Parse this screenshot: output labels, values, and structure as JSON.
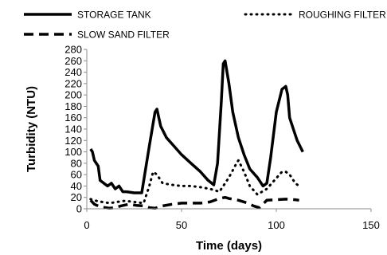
{
  "chart_data": {
    "type": "line",
    "xlabel": "Time (days)",
    "ylabel": "Turbidity (NTU)",
    "xlim": [
      0,
      150
    ],
    "ylim": [
      0,
      280
    ],
    "x_ticks": [
      0,
      50,
      100,
      150
    ],
    "y_ticks": [
      0,
      20,
      40,
      60,
      80,
      100,
      120,
      140,
      160,
      180,
      200,
      220,
      240,
      260,
      280
    ],
    "grid": false,
    "legend_position": "top",
    "series": [
      {
        "name": "STORAGE TANK",
        "style": "solid",
        "x": [
          2,
          3,
          4,
          5,
          6,
          7,
          9,
          11,
          13,
          15,
          17,
          19,
          21,
          25,
          29,
          33,
          36,
          37,
          39,
          42,
          46,
          50,
          55,
          60,
          64,
          67,
          69,
          71,
          72,
          73,
          75,
          77,
          80,
          83,
          86,
          90,
          93,
          95,
          97,
          100,
          103,
          105,
          106,
          107,
          109,
          111,
          114
        ],
        "y": [
          105,
          100,
          85,
          80,
          75,
          50,
          45,
          40,
          45,
          35,
          40,
          30,
          30,
          28,
          28,
          110,
          170,
          175,
          145,
          125,
          110,
          95,
          80,
          65,
          50,
          42,
          80,
          190,
          255,
          260,
          220,
          170,
          125,
          95,
          70,
          55,
          40,
          45,
          90,
          170,
          210,
          215,
          200,
          160,
          140,
          120,
          100
        ]
      },
      {
        "name": "ROUGHING FILTER",
        "style": "dotted",
        "x": [
          2,
          5,
          8,
          12,
          16,
          20,
          25,
          30,
          33,
          35,
          37,
          40,
          45,
          50,
          55,
          60,
          65,
          70,
          75,
          79,
          80,
          83,
          86,
          90,
          95,
          99,
          103,
          105,
          107,
          110,
          112
        ],
        "y": [
          17,
          14,
          12,
          10,
          12,
          14,
          12,
          10,
          40,
          65,
          60,
          45,
          42,
          40,
          40,
          38,
          35,
          30,
          55,
          80,
          85,
          65,
          40,
          25,
          35,
          50,
          65,
          65,
          60,
          45,
          40
        ]
      },
      {
        "name": "SLOW SAND FILTER",
        "style": "dashed",
        "x": [
          2,
          4,
          6,
          8,
          10,
          12,
          15,
          18,
          22,
          26,
          30,
          33,
          36,
          40,
          45,
          50,
          55,
          60,
          65,
          70,
          73,
          75,
          80,
          85,
          88,
          91,
          95,
          100,
          105,
          110,
          112
        ],
        "y": [
          15,
          8,
          5,
          3,
          2,
          1,
          2,
          5,
          8,
          6,
          5,
          2,
          1,
          5,
          8,
          10,
          10,
          10,
          12,
          18,
          20,
          18,
          15,
          10,
          5,
          2,
          15,
          16,
          17,
          16,
          15
        ]
      }
    ]
  }
}
